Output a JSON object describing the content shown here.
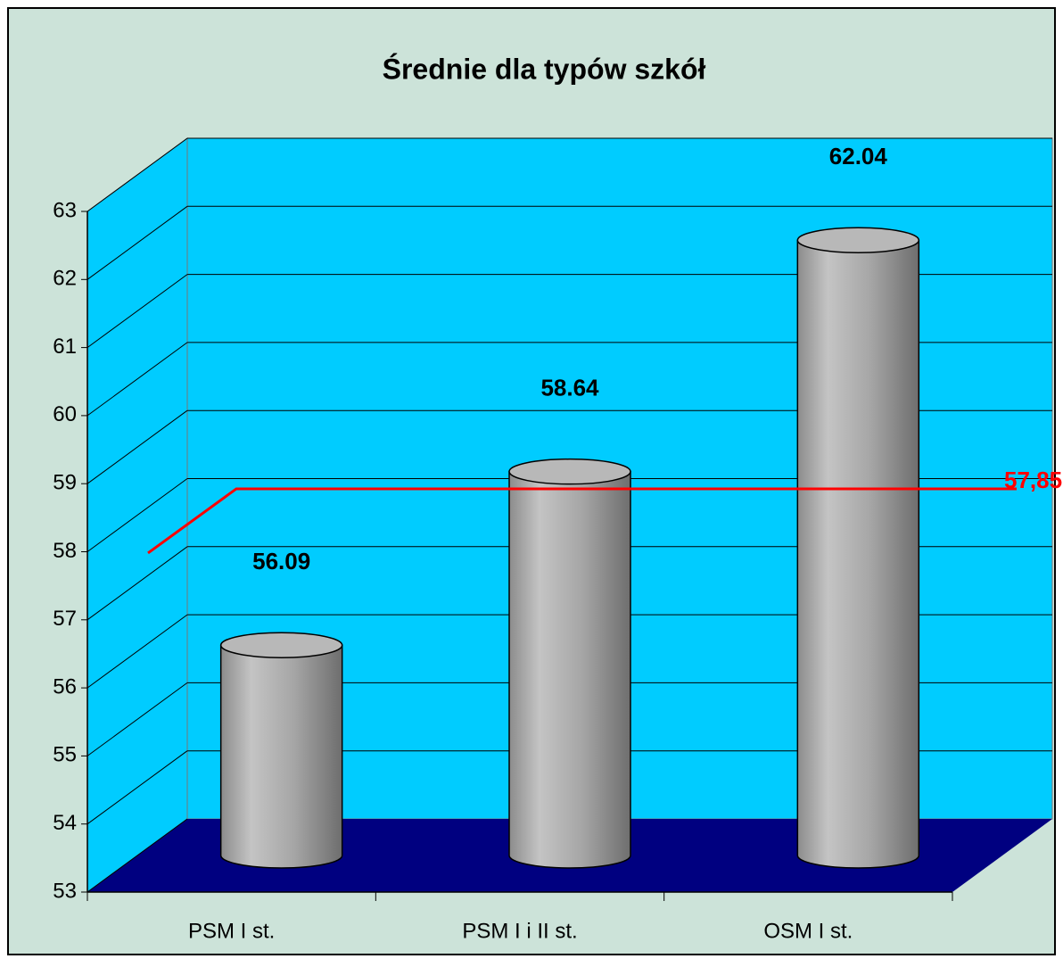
{
  "chart_data": {
    "type": "cylinder",
    "title": "Średnie dla typów szkół",
    "categories": [
      "PSM I st.",
      "PSM I i II st.",
      "OSM I st."
    ],
    "values": [
      56.09,
      58.64,
      62.04
    ],
    "color": "#a8a8a8",
    "ylim": [
      53,
      63
    ],
    "yticks": [
      53,
      54,
      55,
      56,
      57,
      58,
      59,
      60,
      61,
      62,
      63
    ],
    "grid": true,
    "reference_line": {
      "value": 57.85,
      "value_label": "57,85",
      "color": "#ff0000"
    }
  }
}
